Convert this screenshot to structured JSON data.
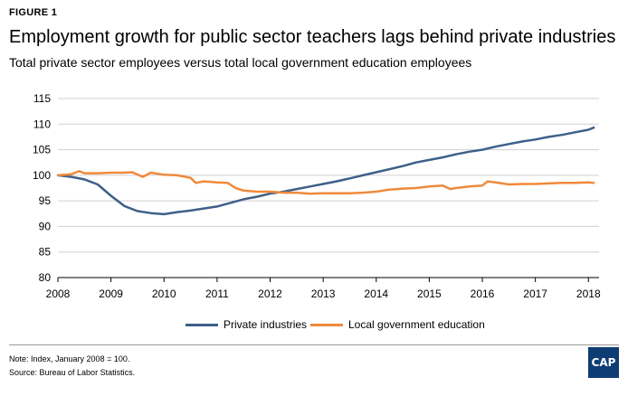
{
  "figure_label": "FIGURE 1",
  "title": "Employment growth for public sector teachers lags behind private industries",
  "subtitle": "Total private sector employees versus total local government education employees",
  "notes": {
    "note": "Note: Index, January 2008 = 100.",
    "source": "Source: Bureau of Labor Statistics."
  },
  "logo_text": "CAP",
  "chart_data": {
    "type": "line",
    "xlim": [
      2008,
      2018.2
    ],
    "ylim": [
      80,
      115
    ],
    "x_ticks": [
      "2008",
      "2009",
      "2010",
      "2011",
      "2012",
      "2013",
      "2014",
      "2015",
      "2016",
      "2017",
      "2018"
    ],
    "y_ticks": [
      "80",
      "85",
      "90",
      "95",
      "100",
      "105",
      "110",
      "115"
    ],
    "grid": "horizontal",
    "legend_position": "bottom",
    "series": [
      {
        "name": "Private industries",
        "color": "#3e6089",
        "x": [
          2008.0,
          2008.25,
          2008.5,
          2008.75,
          2009.0,
          2009.25,
          2009.5,
          2009.75,
          2010.0,
          2010.25,
          2010.5,
          2010.75,
          2011.0,
          2011.25,
          2011.5,
          2011.75,
          2012.0,
          2012.25,
          2012.5,
          2012.75,
          2013.0,
          2013.25,
          2013.5,
          2013.75,
          2014.0,
          2014.25,
          2014.5,
          2014.75,
          2015.0,
          2015.25,
          2015.5,
          2015.75,
          2016.0,
          2016.25,
          2016.5,
          2016.75,
          2017.0,
          2017.25,
          2017.5,
          2017.75,
          2018.0,
          2018.1
        ],
        "values": [
          100.0,
          99.7,
          99.2,
          98.2,
          96.0,
          94.0,
          93.0,
          92.6,
          92.4,
          92.8,
          93.1,
          93.5,
          93.9,
          94.6,
          95.3,
          95.8,
          96.4,
          96.8,
          97.3,
          97.8,
          98.3,
          98.8,
          99.4,
          100.0,
          100.6,
          101.2,
          101.8,
          102.5,
          103.0,
          103.5,
          104.1,
          104.6,
          105.0,
          105.6,
          106.1,
          106.6,
          107.0,
          107.5,
          107.9,
          108.4,
          108.9,
          109.3
        ]
      },
      {
        "name": "Local government education",
        "color": "#ef8a3c",
        "x": [
          2008.0,
          2008.25,
          2008.4,
          2008.5,
          2008.75,
          2009.0,
          2009.25,
          2009.4,
          2009.6,
          2009.75,
          2010.0,
          2010.25,
          2010.5,
          2010.6,
          2010.75,
          2011.0,
          2011.2,
          2011.35,
          2011.5,
          2011.75,
          2012.0,
          2012.25,
          2012.5,
          2012.75,
          2013.0,
          2013.25,
          2013.5,
          2013.75,
          2014.0,
          2014.25,
          2014.5,
          2014.75,
          2015.0,
          2015.25,
          2015.4,
          2015.5,
          2015.75,
          2016.0,
          2016.1,
          2016.25,
          2016.5,
          2016.75,
          2017.0,
          2017.25,
          2017.5,
          2017.75,
          2018.0,
          2018.1
        ],
        "values": [
          100.0,
          100.2,
          100.8,
          100.4,
          100.4,
          100.5,
          100.5,
          100.6,
          99.7,
          100.5,
          100.1,
          100.0,
          99.5,
          98.5,
          98.8,
          98.6,
          98.5,
          97.5,
          97.0,
          96.8,
          96.8,
          96.6,
          96.6,
          96.4,
          96.5,
          96.5,
          96.5,
          96.6,
          96.8,
          97.2,
          97.4,
          97.5,
          97.8,
          98.0,
          97.3,
          97.5,
          97.8,
          98.0,
          98.8,
          98.6,
          98.2,
          98.3,
          98.3,
          98.4,
          98.5,
          98.5,
          98.6,
          98.5
        ]
      }
    ]
  }
}
